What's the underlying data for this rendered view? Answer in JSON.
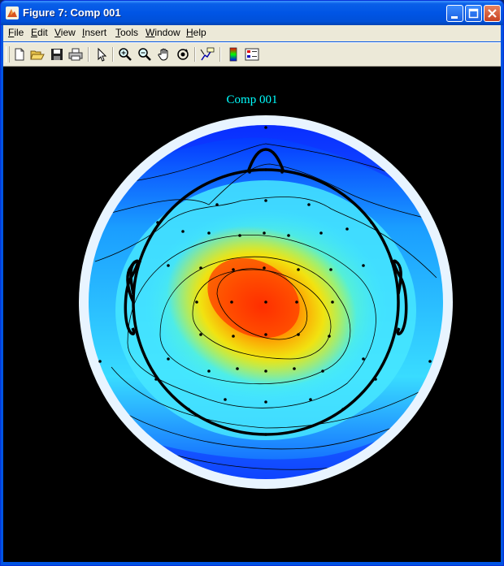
{
  "window": {
    "title": "Figure 7: Comp 001",
    "icon": "matlab-icon",
    "controls": [
      "minimize-icon",
      "maximize-icon",
      "close-icon"
    ]
  },
  "menubar": {
    "items": [
      {
        "label": "File",
        "mnemonic": "F",
        "rest": "ile"
      },
      {
        "label": "Edit",
        "mnemonic": "E",
        "rest": "dit"
      },
      {
        "label": "View",
        "mnemonic": "V",
        "rest": "iew"
      },
      {
        "label": "Insert",
        "mnemonic": "I",
        "rest": "nsert"
      },
      {
        "label": "Tools",
        "mnemonic": "T",
        "rest": "ools"
      },
      {
        "label": "Window",
        "mnemonic": "W",
        "rest": "indow"
      },
      {
        "label": "Help",
        "mnemonic": "H",
        "rest": "elp"
      }
    ]
  },
  "toolbar": {
    "tools": [
      "new-figure-icon",
      "open-file-icon",
      "save-icon",
      "print-icon",
      "edit-plot-arrow-icon",
      "zoom-in-icon",
      "zoom-out-icon",
      "pan-hand-icon",
      "rotate-3d-icon",
      "data-cursor-icon",
      "colorbar-icon",
      "legend-icon"
    ]
  },
  "figure": {
    "title": "Comp 001",
    "title_color": "#00ffff",
    "background": "#000000",
    "colormap": "jet"
  }
}
